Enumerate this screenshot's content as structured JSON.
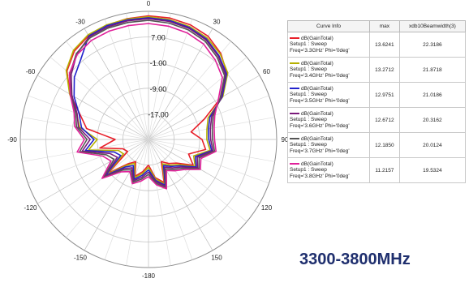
{
  "chart_data": {
    "type": "polar",
    "angle_ticks_deg": [
      0,
      30,
      60,
      90,
      120,
      150,
      -180,
      -150,
      -120,
      -90,
      -60,
      -30
    ],
    "angle_tick_labels": [
      "0",
      "30",
      "60",
      "90",
      "120",
      "150",
      "-180",
      "-150",
      "-120",
      "-90",
      "-60",
      "-30"
    ],
    "radial_ticks": [
      7.0,
      -1.0,
      -9.0,
      -17.0
    ],
    "radial_tick_labels": [
      "7.00",
      "-1.00",
      "-9.00",
      "-17.00"
    ],
    "rlim": [
      -25,
      15
    ],
    "angle_direction": "clockwise",
    "zero_at": "top",
    "grid": true,
    "ylabel": "dB(GainTotal)",
    "series": [
      {
        "name": "dB(GainTotal) Setup1 : Sweep Freq='3.3GHz' Phi='0deg'",
        "color": "#e8202a",
        "theta": [
          -180,
          -170,
          -160,
          -150,
          -140,
          -130,
          -120,
          -110,
          -100,
          -90,
          -80,
          -70,
          -60,
          -50,
          -40,
          -30,
          -20,
          -10,
          0,
          10,
          20,
          30,
          40,
          50,
          60,
          70,
          80,
          90,
          100,
          110,
          120,
          130,
          140,
          150,
          160,
          170
        ],
        "values": [
          -17.0,
          -14.8,
          -12.8,
          -17.0,
          -15.1,
          -8.6,
          -17.5,
          -16.5,
          -9.6,
          -14.6,
          -5.4,
          -2.3,
          3.2,
          8.2,
          11.0,
          12.4,
          13.0,
          13.3,
          13.6,
          13.5,
          13.1,
          12.2,
          10.1,
          7.0,
          1.1,
          -6.5,
          -11.5,
          -8.3,
          -6.9,
          -11.7,
          -8.9,
          -13.5,
          -15.2,
          -17.0,
          -10.7,
          -12.9
        ]
      },
      {
        "name": "dB(GainTotal) Setup1 : Sweep Freq='3.4GHz' Phi='0deg'",
        "color": "#b5b000",
        "theta": [
          -180,
          -170,
          -160,
          -150,
          -140,
          -130,
          -120,
          -110,
          -100,
          -90,
          -80,
          -70,
          -60,
          -50,
          -40,
          -30,
          -20,
          -10,
          0,
          10,
          20,
          30,
          40,
          50,
          60,
          70,
          80,
          90,
          100,
          110,
          120,
          130,
          140,
          150,
          160,
          170
        ],
        "values": [
          -16.3,
          -14.2,
          -12.3,
          -16.4,
          -14.5,
          -8.1,
          -16.0,
          -15.0,
          -6.0,
          -9.0,
          -3.2,
          -1.1,
          3.4,
          8.5,
          11.4,
          12.7,
          13.1,
          13.2,
          13.3,
          13.0,
          12.5,
          11.6,
          9.8,
          7.3,
          1.8,
          -5.2,
          -6.5,
          -6.8,
          -5.5,
          -10.0,
          -8.2,
          -12.8,
          -14.5,
          -16.2,
          -10.2,
          -12.5
        ]
      },
      {
        "name": "dB(GainTotal) Setup1 : Sweep Freq='3.5GHz' Phi='0deg'",
        "color": "#2222cc",
        "theta": [
          -180,
          -170,
          -160,
          -150,
          -140,
          -130,
          -120,
          -110,
          -100,
          -90,
          -80,
          -70,
          -60,
          -50,
          -40,
          -30,
          -20,
          -10,
          0,
          10,
          20,
          30,
          40,
          50,
          60,
          70,
          80,
          90,
          100,
          110,
          120,
          130,
          140,
          150,
          160,
          170
        ],
        "values": [
          -15.5,
          -13.6,
          -11.8,
          -15.6,
          -13.8,
          -7.6,
          -15.0,
          -13.6,
          -5.0,
          -8.0,
          -3.8,
          -2.0,
          1.8,
          5.2,
          7.8,
          12.3,
          12.8,
          12.9,
          13.0,
          12.7,
          12.2,
          11.2,
          9.2,
          6.8,
          1.5,
          -4.6,
          -6.0,
          -6.2,
          -5.0,
          -9.4,
          -7.8,
          -12.2,
          -14.0,
          -15.6,
          -9.8,
          -12.0
        ]
      },
      {
        "name": "dB(GainTotal) Setup1 : Sweep Freq='3.6GHz' Phi='0deg'",
        "color": "#7a1a7a",
        "theta": [
          -180,
          -170,
          -160,
          -150,
          -140,
          -130,
          -120,
          -110,
          -100,
          -90,
          -80,
          -70,
          -60,
          -50,
          -40,
          -30,
          -20,
          -10,
          0,
          10,
          20,
          30,
          40,
          50,
          60,
          70,
          80,
          90,
          100,
          110,
          120,
          130,
          140,
          150,
          160,
          170
        ],
        "values": [
          -14.8,
          -13.0,
          -11.3,
          -14.8,
          -13.1,
          -7.1,
          -13.8,
          -12.2,
          -4.0,
          -6.8,
          -2.8,
          -1.3,
          2.6,
          6.5,
          9.8,
          12.0,
          12.4,
          12.6,
          12.7,
          12.4,
          11.9,
          10.9,
          8.9,
          6.4,
          1.2,
          -4.0,
          -5.4,
          -5.6,
          -4.6,
          -8.8,
          -7.3,
          -11.6,
          -13.4,
          -15.0,
          -9.4,
          -11.6
        ]
      },
      {
        "name": "dB(GainTotal) Setup1 : Sweep Freq='3.7GHz' Phi='0deg'",
        "color": "#555555",
        "theta": [
          -180,
          -170,
          -160,
          -150,
          -140,
          -130,
          -120,
          -110,
          -100,
          -90,
          -80,
          -70,
          -60,
          -50,
          -40,
          -30,
          -20,
          -10,
          0,
          10,
          20,
          30,
          40,
          50,
          60,
          70,
          80,
          90,
          100,
          110,
          120,
          130,
          140,
          150,
          160,
          170
        ],
        "values": [
          -14.1,
          -12.4,
          -10.8,
          -14.1,
          -12.5,
          -6.6,
          -12.6,
          -11.0,
          -3.2,
          -5.8,
          -2.2,
          -0.8,
          3.0,
          7.0,
          10.0,
          11.6,
          12.0,
          12.1,
          12.2,
          11.9,
          11.4,
          10.4,
          8.4,
          6.0,
          0.8,
          -3.5,
          -4.8,
          -5.0,
          -4.1,
          -8.2,
          -6.8,
          -11.0,
          -12.8,
          -14.4,
          -9.0,
          -11.1
        ]
      },
      {
        "name": "dB(GainTotal) Setup1 : Sweep Freq='3.8GHz' Phi='0deg'",
        "color": "#e0209a",
        "theta": [
          -180,
          -170,
          -160,
          -150,
          -140,
          -130,
          -120,
          -110,
          -100,
          -90,
          -80,
          -70,
          -60,
          -50,
          -40,
          -30,
          -20,
          -10,
          0,
          10,
          20,
          30,
          40,
          50,
          60,
          70,
          80,
          90,
          100,
          110,
          120,
          130,
          140,
          150,
          160,
          170
        ],
        "values": [
          -13.4,
          -11.8,
          -10.3,
          -13.4,
          -11.8,
          -6.1,
          -11.5,
          -9.8,
          -2.4,
          -5.0,
          -1.6,
          -0.3,
          3.2,
          7.2,
          9.6,
          10.7,
          11.0,
          11.1,
          11.2,
          10.9,
          10.4,
          9.4,
          7.4,
          5.1,
          0.2,
          -3.0,
          -4.2,
          -4.4,
          -3.6,
          -7.6,
          -6.3,
          -10.4,
          -12.2,
          -13.8,
          -8.6,
          -10.6
        ]
      }
    ]
  },
  "legend": {
    "headers": [
      "Curve Info",
      "max",
      "xdb10Beamwidth(3)"
    ],
    "rows": [
      {
        "line1": "dB(GainTotal)",
        "line2": "Setup1 : Sweep",
        "line3": "Freq='3.3GHz' Phi='0deg'",
        "max": "13.6241",
        "bw": "22.3186",
        "color": "#e8202a"
      },
      {
        "line1": "dB(GainTotal)",
        "line2": "Setup1 : Sweep",
        "line3": "Freq='3.4GHz' Phi='0deg'",
        "max": "13.2712",
        "bw": "21.8718",
        "color": "#b5b000"
      },
      {
        "line1": "dB(GainTotal)",
        "line2": "Setup1 : Sweep",
        "line3": "Freq='3.5GHz' Phi='0deg'",
        "max": "12.9751",
        "bw": "21.0186",
        "color": "#2222cc"
      },
      {
        "line1": "dB(GainTotal)",
        "line2": "Setup1 : Sweep",
        "line3": "Freq='3.6GHz' Phi='0deg'",
        "max": "12.6712",
        "bw": "20.3162",
        "color": "#7a1a7a"
      },
      {
        "line1": "dB(GainTotal)",
        "line2": "Setup1 : Sweep",
        "line3": "Freq='3.7GHz' Phi='0deg'",
        "max": "12.1850",
        "bw": "20.0124",
        "color": "#555555"
      },
      {
        "line1": "dB(GainTotal)",
        "line2": "Setup1 : Sweep",
        "line3": "Freq='3.8GHz' Phi='0deg'",
        "max": "11.2157",
        "bw": "19.5324",
        "color": "#e0209a"
      }
    ]
  },
  "caption": {
    "text": "3300-3800MHz",
    "color": "#1f2f6e"
  }
}
